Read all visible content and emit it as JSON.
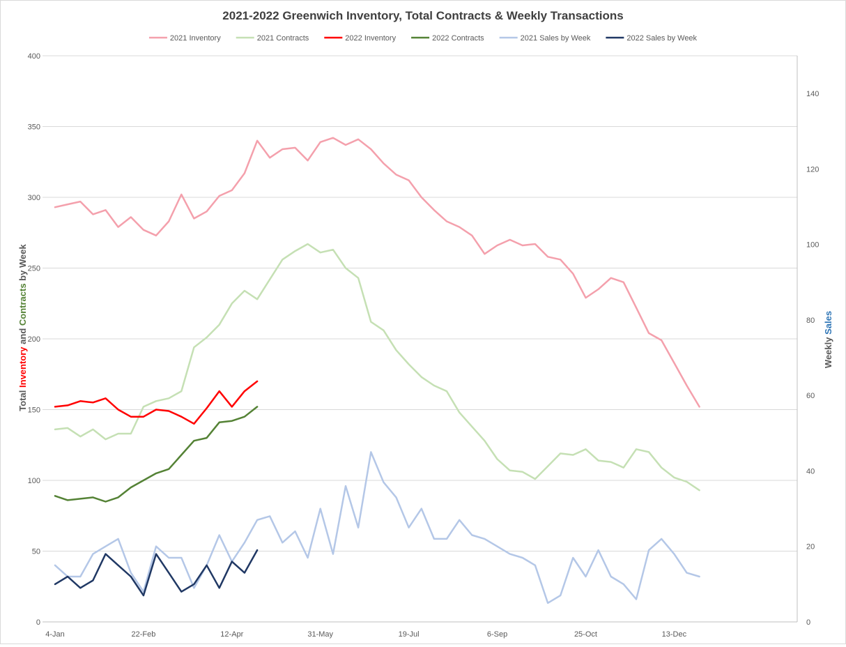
{
  "chart_data": {
    "type": "line",
    "title": "2021-2022 Greenwich Inventory, Total Contracts & Weekly Transactions",
    "ylabel_left_parts": [
      {
        "text": "Total ",
        "color": "#595959"
      },
      {
        "text": "Inventory",
        "color": "#ff0000"
      },
      {
        "text": " and ",
        "color": "#595959"
      },
      {
        "text": "Contracts",
        "color": "#548235"
      },
      {
        "text": " by Week",
        "color": "#595959"
      }
    ],
    "ylabel_right_parts": [
      {
        "text": "Weekly ",
        "color": "#595959"
      },
      {
        "text": "Sales",
        "color": "#2e75b6"
      }
    ],
    "ylim_left": [
      0,
      400
    ],
    "yticks_left": [
      0,
      50,
      100,
      150,
      200,
      250,
      300,
      350,
      400
    ],
    "ylim_right": [
      0,
      150
    ],
    "yticks_right": [
      0,
      20,
      40,
      60,
      80,
      100,
      120,
      140
    ],
    "x_tick_labels": [
      {
        "index": 0,
        "label": "4-Jan"
      },
      {
        "index": 7,
        "label": "22-Feb"
      },
      {
        "index": 14,
        "label": "12-Apr"
      },
      {
        "index": 21,
        "label": "31-May"
      },
      {
        "index": 28,
        "label": "19-Jul"
      },
      {
        "index": 35,
        "label": "6-Sep"
      },
      {
        "index": 42,
        "label": "25-Oct"
      },
      {
        "index": 49,
        "label": "13-Dec"
      }
    ],
    "x_count": 53,
    "grid": "horizontal",
    "legend_position": "top",
    "series": [
      {
        "name": "2021 Inventory",
        "axis": "left",
        "color": "#f4a0ac",
        "width": 2.5,
        "values": [
          293,
          295,
          297,
          288,
          291,
          279,
          286,
          277,
          273,
          283,
          302,
          285,
          290,
          301,
          305,
          317,
          340,
          328,
          334,
          335,
          326,
          339,
          342,
          337,
          341,
          334,
          324,
          316,
          312,
          300,
          291,
          283,
          279,
          273,
          260,
          266,
          270,
          266,
          267,
          258,
          256,
          246,
          229,
          235,
          243,
          240,
          222,
          204,
          199,
          183,
          167,
          152
        ]
      },
      {
        "name": "2021 Contracts",
        "axis": "left",
        "color": "#c5e0b4",
        "width": 2.5,
        "values": [
          136,
          137,
          131,
          136,
          129,
          133,
          133,
          152,
          156,
          158,
          163,
          194,
          201,
          210,
          225,
          234,
          228,
          242,
          256,
          262,
          267,
          261,
          263,
          250,
          243,
          212,
          206,
          192,
          182,
          173,
          167,
          163,
          148,
          138,
          128,
          115,
          107,
          106,
          101,
          110,
          119,
          118,
          122,
          114,
          113,
          109,
          122,
          120,
          109,
          102,
          99,
          93
        ]
      },
      {
        "name": "2022 Inventory",
        "axis": "left",
        "color": "#ff0000",
        "width": 2.5,
        "values": [
          152,
          153,
          156,
          155,
          158,
          150,
          145,
          145,
          150,
          149,
          145,
          140,
          151,
          163,
          152,
          163,
          170
        ]
      },
      {
        "name": "2022 Contracts",
        "axis": "left",
        "color": "#548235",
        "width": 2.5,
        "values": [
          89,
          86,
          87,
          88,
          85,
          88,
          95,
          100,
          105,
          108,
          118,
          128,
          130,
          141,
          142,
          145,
          152
        ]
      },
      {
        "name": "2021 Sales by Week",
        "axis": "right",
        "color": "#b4c7e7",
        "width": 2.5,
        "values": [
          15,
          12,
          12,
          18,
          20,
          22,
          13,
          8,
          20,
          17,
          17,
          9,
          15,
          23,
          16,
          21,
          27,
          28,
          21,
          24,
          17,
          30,
          18,
          36,
          25,
          45,
          37,
          33,
          25,
          30,
          22,
          22,
          27,
          23,
          22,
          20,
          18,
          17,
          15,
          5,
          7,
          17,
          12,
          19,
          12,
          10,
          6,
          19,
          22,
          18,
          13,
          12
        ]
      },
      {
        "name": "2022 Sales by Week",
        "axis": "right",
        "color": "#203864",
        "width": 2.5,
        "values": [
          10,
          12,
          9,
          11,
          18,
          15,
          12,
          7,
          18,
          13,
          8,
          10,
          15,
          9,
          16,
          13,
          19
        ]
      }
    ]
  }
}
